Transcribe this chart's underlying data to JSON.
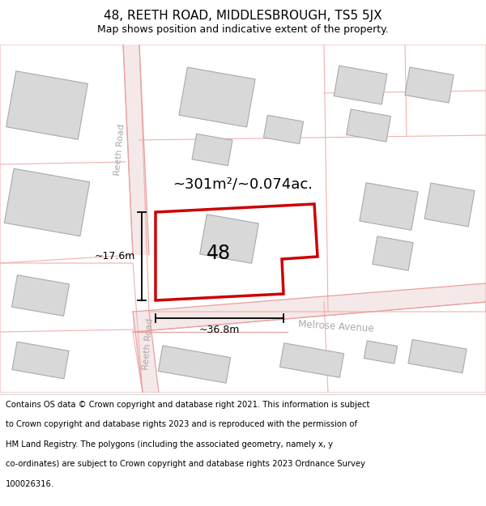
{
  "title": "48, REETH ROAD, MIDDLESBROUGH, TS5 5JX",
  "subtitle": "Map shows position and indicative extent of the property.",
  "footer_lines": [
    "Contains OS data © Crown copyright and database right 2021. This information is subject",
    "to Crown copyright and database rights 2023 and is reproduced with the permission of",
    "HM Land Registry. The polygons (including the associated geometry, namely x, y",
    "co-ordinates) are subject to Crown copyright and database rights 2023 Ordnance Survey",
    "100026316."
  ],
  "map_bg": "#ffffff",
  "road_fill": "#f5e8e8",
  "road_edge": "#e8a0a0",
  "block_edge": "#f0b0b0",
  "building_fill": "#d8d8d8",
  "building_edge": "#aaaaaa",
  "highlight_color": "#cc0000",
  "area_label": "~301m²/~0.074ac.",
  "number_label": "48",
  "dim_height": "~17.6m",
  "dim_width": "~36.8m",
  "street_upper": "Reeth Road",
  "street_lower": "Reeth Road",
  "street_horiz": "Melrose Avenue",
  "title_fontsize": 11,
  "subtitle_fontsize": 9,
  "footer_fontsize": 7.2,
  "street_color": "#aaaaaa",
  "dim_color": "#000000",
  "label_color": "#000000"
}
